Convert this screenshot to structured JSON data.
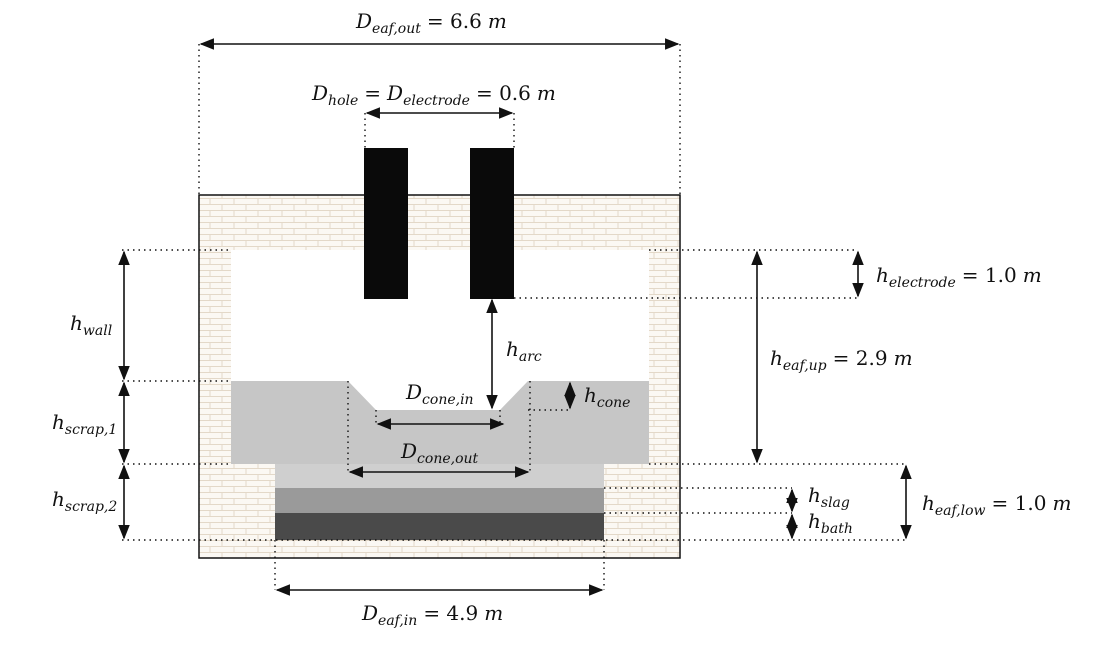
{
  "colors": {
    "brick_fill": "#fbf8f3",
    "brick_line": "#e3d8c8",
    "scrap": "#c6c6c6",
    "scrap_low": "#cfcfcf",
    "slag": "#9a9a9a",
    "bath": "#4a4a4a",
    "electrode": "#0a0a0a",
    "line": "#111111"
  },
  "labels": {
    "d_eaf_out": {
      "sym": "D",
      "sub": "eaf,out",
      "eq": "= 6.6",
      "unit": "m"
    },
    "d_hole": {
      "sym": "D",
      "sub": "hole",
      "eq": "=",
      "sym2": "D",
      "sub2": "electrode",
      "eq2": "= 0.6",
      "unit": "m"
    },
    "h_electrode": {
      "sym": "h",
      "sub": "electrode",
      "eq": "= 1.0",
      "unit": "m"
    },
    "h_wall": {
      "sym": "h",
      "sub": "wall"
    },
    "h_arc": {
      "sym": "h",
      "sub": "arc"
    },
    "h_eaf_up": {
      "sym": "h",
      "sub": "eaf,up",
      "eq": "= 2.9",
      "unit": "m"
    },
    "d_cone_in": {
      "sym": "D",
      "sub": "cone,in"
    },
    "h_cone": {
      "sym": "h",
      "sub": "cone"
    },
    "h_scrap_1": {
      "sym": "h",
      "sub": "scrap,1"
    },
    "d_cone_out": {
      "sym": "D",
      "sub": "cone,out"
    },
    "h_scrap_2": {
      "sym": "h",
      "sub": "scrap,2"
    },
    "h_slag": {
      "sym": "h",
      "sub": "slag"
    },
    "h_bath": {
      "sym": "h",
      "sub": "bath"
    },
    "h_eaf_low": {
      "sym": "h",
      "sub": "eaf,low",
      "eq": "= 1.0",
      "unit": "m"
    },
    "d_eaf_in": {
      "sym": "D",
      "sub": "eaf,in",
      "eq": "= 4.9",
      "unit": "m"
    }
  }
}
